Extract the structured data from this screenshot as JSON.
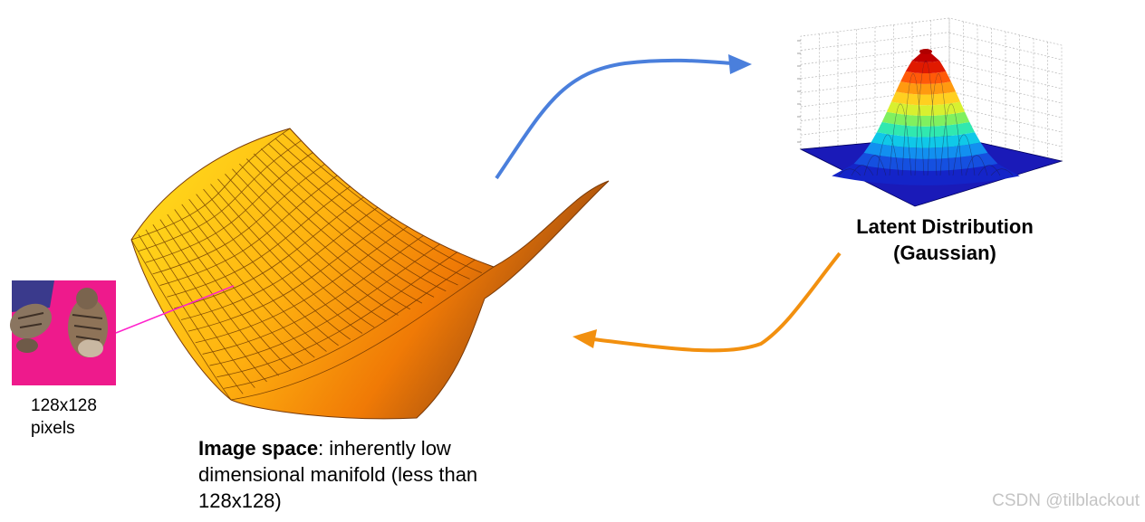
{
  "image_label": {
    "line1": "128x128",
    "line2": "pixels"
  },
  "image_space_caption": {
    "bold": "Image space",
    "rest": ": inherently low dimensional manifold (less than 128x128)"
  },
  "latent_label": {
    "line1": "Latent Distribution",
    "line2": "(Gaussian)"
  },
  "watermark": "CSDN @tilblackout",
  "colors": {
    "encode_arrow": "#4a7fdc",
    "decode_arrow": "#f2900f",
    "pointer_line": "#ff22cc",
    "manifold_light": "#ffd41a",
    "manifold_dark": "#d86000",
    "gaussian_base": "#1a1ab8",
    "gaussian_peak": "#cc0000",
    "photo_background": "#ee1a8c"
  },
  "icons": [
    "cat-photo",
    "saddle-manifold",
    "gaussian-surface-plot",
    "encode-arrow",
    "decode-arrow"
  ]
}
